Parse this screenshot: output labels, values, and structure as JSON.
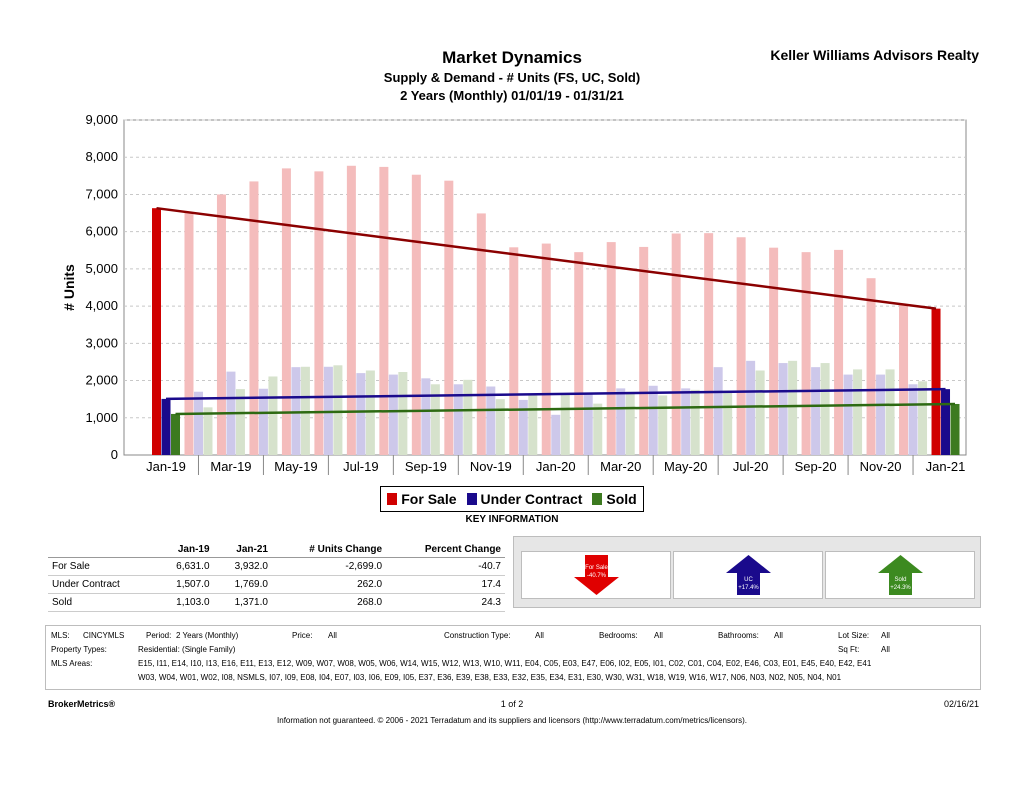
{
  "header": {
    "title": "Market Dynamics",
    "subtitle1": "Supply & Demand - # Units (FS, UC, Sold)",
    "subtitle2": "2 Years (Monthly) 01/01/19 - 01/31/21",
    "company": "Keller Williams Advisors Realty"
  },
  "chart_data": {
    "type": "bar",
    "ylabel": "# Units",
    "ylim": [
      0,
      9000
    ],
    "y_ticks": [
      "0",
      "1,000",
      "2,000",
      "3,000",
      "4,000",
      "5,000",
      "6,000",
      "7,000",
      "8,000",
      "9,000"
    ],
    "x_tick_labels": [
      "Jan-19",
      "Mar-19",
      "May-19",
      "Jul-19",
      "Sep-19",
      "Nov-19",
      "Jan-20",
      "Mar-20",
      "May-20",
      "Jul-20",
      "Sep-20",
      "Nov-20",
      "Jan-21"
    ],
    "categories": [
      "Jan-19",
      "Feb-19",
      "Mar-19",
      "Apr-19",
      "May-19",
      "Jun-19",
      "Jul-19",
      "Aug-19",
      "Sep-19",
      "Oct-19",
      "Nov-19",
      "Dec-19",
      "Jan-20",
      "Feb-20",
      "Mar-20",
      "Apr-20",
      "May-20",
      "Jun-20",
      "Jul-20",
      "Aug-20",
      "Sep-20",
      "Oct-20",
      "Nov-20",
      "Dec-20",
      "Jan-21"
    ],
    "grid": true,
    "legend_position": "bottom",
    "series": [
      {
        "name": "For Sale",
        "color": "#d00000",
        "light_color": "#f4bcbc",
        "values": [
          6631,
          6500,
          7000,
          7350,
          7700,
          7620,
          7770,
          7740,
          7530,
          7370,
          6490,
          5580,
          5680,
          5450,
          5720,
          5590,
          5950,
          5960,
          5850,
          5570,
          5450,
          5510,
          4750,
          4030,
          3932
        ]
      },
      {
        "name": "Under Contract",
        "color": "#1a0a8c",
        "light_color": "#cdc8ea",
        "values": [
          1507,
          1700,
          2240,
          1780,
          2360,
          2370,
          2200,
          2160,
          2060,
          1900,
          1840,
          1480,
          1080,
          1680,
          1790,
          1860,
          1790,
          2360,
          2530,
          2470,
          2360,
          2160,
          2160,
          1900,
          1769
        ]
      },
      {
        "name": "Sold",
        "color": "#3c7a20",
        "light_color": "#d6e2cc",
        "values": [
          1103,
          1280,
          1770,
          2110,
          2370,
          2410,
          2270,
          2230,
          1900,
          2020,
          1500,
          1650,
          1620,
          1380,
          1700,
          1600,
          1750,
          1730,
          2270,
          2530,
          2470,
          2300,
          2300,
          1980,
          1371
        ]
      }
    ],
    "trendlines": [
      {
        "series": "For Sale",
        "start": 6631,
        "end": 3932,
        "color": "#8b0000"
      },
      {
        "series": "Under Contract",
        "start": 1507,
        "end": 1769,
        "color": "#1a0a8c"
      },
      {
        "series": "Sold",
        "start": 1103,
        "end": 1371,
        "color": "#2d6a12"
      }
    ]
  },
  "legend": {
    "items": [
      "For Sale",
      "Under Contract",
      "Sold"
    ]
  },
  "key_info": {
    "title": "KEY INFORMATION",
    "headers": [
      "",
      "Jan-19",
      "Jan-21",
      "# Units Change",
      "Percent Change"
    ],
    "rows": [
      [
        "For Sale",
        "6,631.0",
        "3,932.0",
        "-2,699.0",
        "-40.7"
      ],
      [
        "Under Contract",
        "1,507.0",
        "1,769.0",
        "262.0",
        "17.4"
      ],
      [
        "Sold",
        "1,103.0",
        "1,371.0",
        "268.0",
        "24.3"
      ]
    ]
  },
  "arrows": [
    {
      "label": "For Sale",
      "change": "-40.7%",
      "direction": "down",
      "color": "#e00000"
    },
    {
      "label": "UC",
      "change": "+17.4%",
      "direction": "up",
      "color": "#1a0a8c"
    },
    {
      "label": "Sold",
      "change": "+24.3%",
      "direction": "up",
      "color": "#3c8a20"
    }
  ],
  "criteria": {
    "mls_label": "MLS:",
    "mls_value": "CINCYMLS",
    "period_label": "Period:",
    "period_value": "2 Years (Monthly)",
    "price_label": "Price:",
    "price_value": "All",
    "construction_label": "Construction Type:",
    "construction_value": "All",
    "bedrooms_label": "Bedrooms:",
    "bedrooms_value": "All",
    "bathrooms_label": "Bathrooms:",
    "bathrooms_value": "All",
    "lotsize_label": "Lot Size:",
    "lotsize_value": "All",
    "ptype_label": "Property Types:",
    "ptype_value": "Residential: (Single Family)",
    "sqft_label": "Sq Ft:",
    "sqft_value": "All",
    "areas_label": "MLS Areas:",
    "areas_line1": "E15, I11, E14, I10, I13, E16, E11, E13, E12, W09, W07, W08, W05, W06, W14, W15, W12, W13, W10, W11, E04, C05, E03, E47, E06, I02, E05, I01, C02, C01, C04, E02, E46, C03, E01, E45, E40, E42, E41",
    "areas_line2": "W03, W04, W01, W02, I08, NSMLS, I07, I09, E08, I04, E07, I03, I06, E09, I05, E37, E36, E39, E38, E33, E32, E35, E34, E31, E30, W30, W31, W18, W19, W16, W17, N06, N03, N02, N05, N04, N01"
  },
  "footer": {
    "brand": "BrokerMetrics®",
    "page": "1 of 2",
    "date": "02/16/21",
    "disclaimer": "Information not guaranteed. © 2006 - 2021 Terradatum and its suppliers and licensors (http://www.terradatum.com/metrics/licensors)."
  }
}
